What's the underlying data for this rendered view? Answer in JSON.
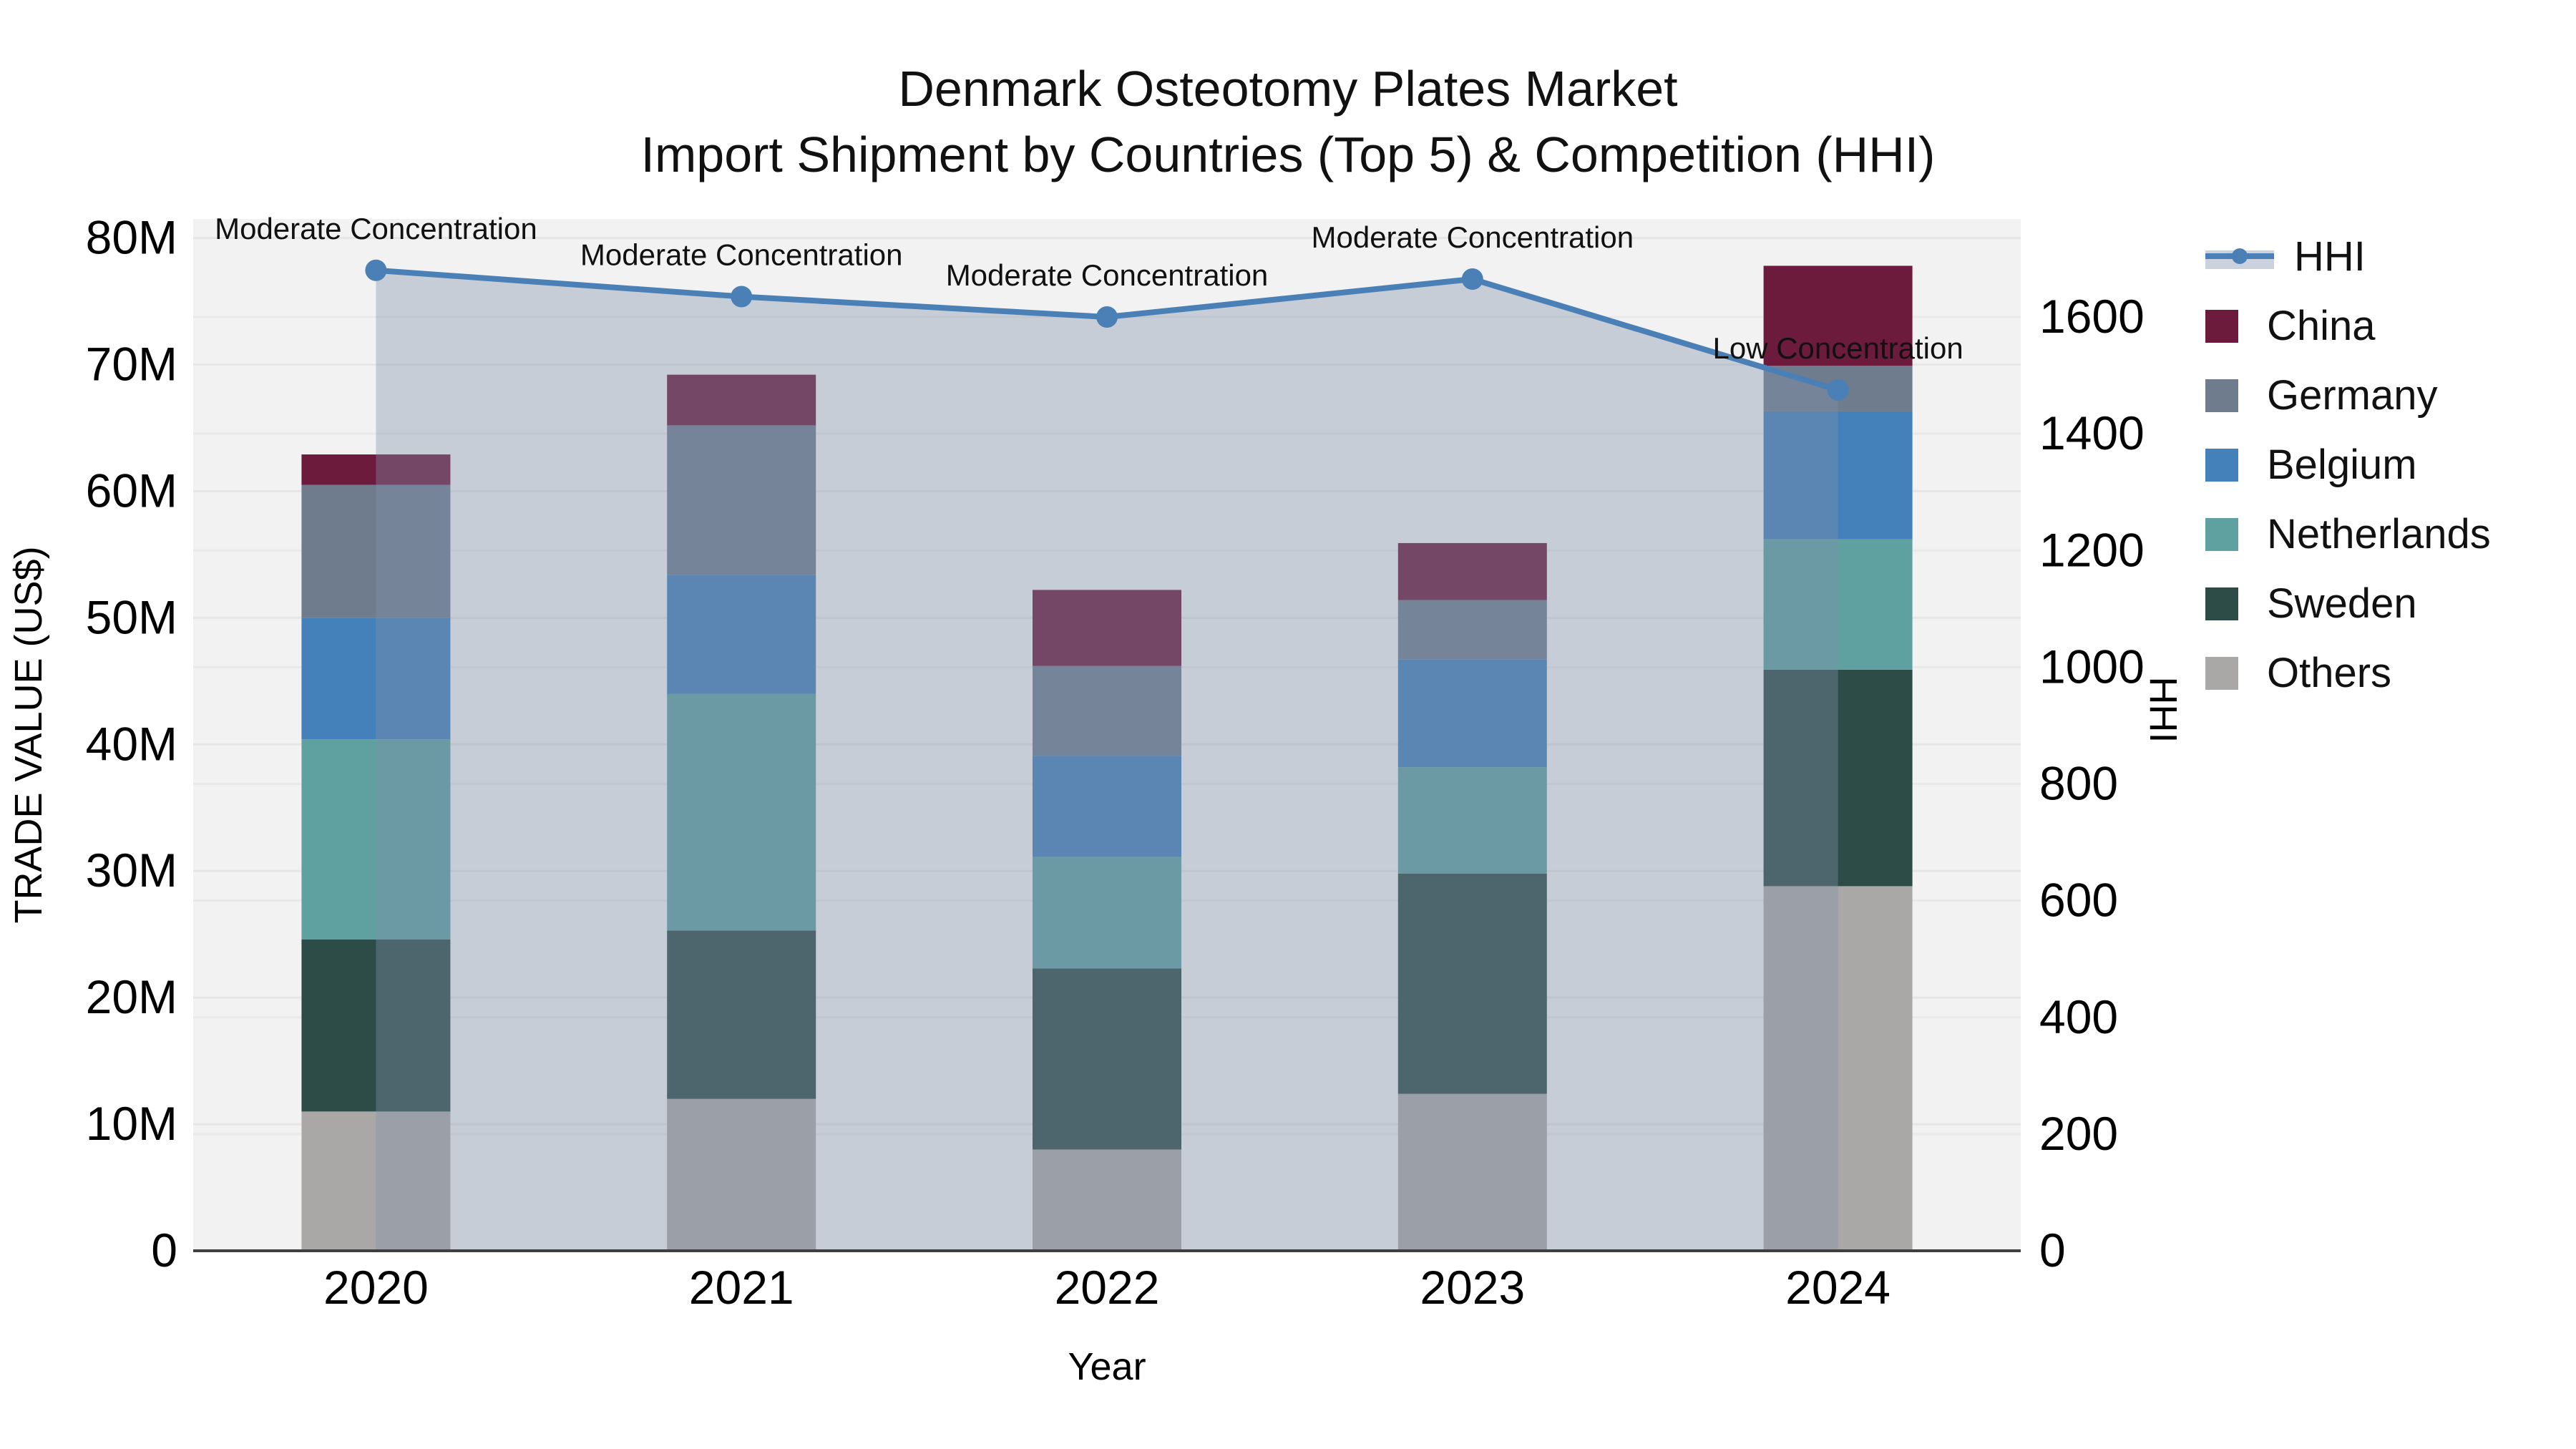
{
  "title": {
    "line1": "Denmark Osteotomy Plates Market",
    "line2": "Import Shipment by Countries (Top 5) & Competition (HHI)"
  },
  "legend": {
    "items": [
      {
        "label": "HHI",
        "type": "line",
        "color": "#4a80b5"
      },
      {
        "label": "China",
        "type": "square",
        "color": "#6d1b3d"
      },
      {
        "label": "Germany",
        "type": "square",
        "color": "#6e7c8d"
      },
      {
        "label": "Belgium",
        "type": "square",
        "color": "#4480b9"
      },
      {
        "label": "Netherlands",
        "type": "square",
        "color": "#5fa1a0"
      },
      {
        "label": "Sweden",
        "type": "square",
        "color": "#2e4c47"
      },
      {
        "label": "Others",
        "type": "square",
        "color": "#aaa8a6"
      }
    ]
  },
  "chart_data": {
    "type": "bar",
    "subtype": "stacked-bars-with-line-overlay",
    "title": "Denmark Osteotomy Plates Market",
    "subtitle": "Import Shipment by Countries (Top 5) & Competition (HHI)",
    "xlabel": "Year",
    "ylabel": "TRADE VALUE (US$)",
    "y2label": "HHI",
    "units": "USD millions",
    "grid": true,
    "plot_bg": "#f2f2f2",
    "legend_position": "right",
    "categories": [
      "2020",
      "2021",
      "2022",
      "2023",
      "2024"
    ],
    "series": [
      {
        "name": "Others",
        "color": "#aaa8a6",
        "values": [
          11.0,
          12.0,
          8.0,
          12.4,
          28.8
        ]
      },
      {
        "name": "Sweden",
        "color": "#2e4c47",
        "values": [
          13.6,
          13.3,
          14.3,
          17.4,
          17.1
        ]
      },
      {
        "name": "Netherlands",
        "color": "#5fa1a0",
        "values": [
          15.8,
          18.7,
          8.8,
          8.4,
          10.3
        ]
      },
      {
        "name": "Belgium",
        "color": "#4480b9",
        "values": [
          9.6,
          9.4,
          8.0,
          8.5,
          10.1
        ]
      },
      {
        "name": "Germany",
        "color": "#6e7c8d",
        "values": [
          10.5,
          11.8,
          7.1,
          4.7,
          3.6
        ]
      },
      {
        "name": "China",
        "color": "#6d1b3d",
        "values": [
          2.4,
          4.0,
          6.0,
          4.5,
          7.9
        ]
      }
    ],
    "bar_totals": [
      62.9,
      69.2,
      52.2,
      55.9,
      77.8
    ],
    "line_series": {
      "name": "HHI",
      "color": "#4a80b5",
      "fill_color": "rgba(130,145,170,0.38)",
      "values": [
        1680,
        1635,
        1600,
        1665,
        1475
      ]
    },
    "annotations": [
      {
        "x": "2020",
        "text": "Moderate Concentration"
      },
      {
        "x": "2021",
        "text": "Moderate Concentration"
      },
      {
        "x": "2022",
        "text": "Moderate Concentration"
      },
      {
        "x": "2023",
        "text": "Moderate Concentration"
      },
      {
        "x": "2024",
        "text": "Low Concentration"
      }
    ],
    "y_axis": {
      "min": 0,
      "max": 81.5,
      "ticks": [
        {
          "v": 0,
          "label": "0"
        },
        {
          "v": 10,
          "label": "10M"
        },
        {
          "v": 20,
          "label": "20M"
        },
        {
          "v": 30,
          "label": "30M"
        },
        {
          "v": 40,
          "label": "40M"
        },
        {
          "v": 50,
          "label": "50M"
        },
        {
          "v": 60,
          "label": "60M"
        },
        {
          "v": 70,
          "label": "70M"
        },
        {
          "v": 80,
          "label": "80M"
        }
      ]
    },
    "y2_axis": {
      "min": 0,
      "max": 1768,
      "ticks": [
        {
          "v": 0,
          "label": "0"
        },
        {
          "v": 200,
          "label": "200"
        },
        {
          "v": 400,
          "label": "400"
        },
        {
          "v": 600,
          "label": "600"
        },
        {
          "v": 800,
          "label": "800"
        },
        {
          "v": 1000,
          "label": "1000"
        },
        {
          "v": 1200,
          "label": "1200"
        },
        {
          "v": 1400,
          "label": "1400"
        },
        {
          "v": 1600,
          "label": "1600"
        }
      ]
    }
  }
}
